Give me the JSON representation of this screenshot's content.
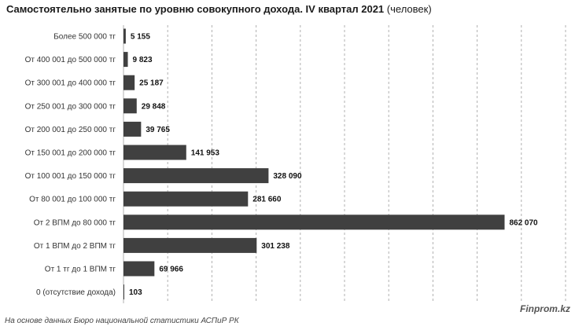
{
  "title": {
    "main": "Самостоятельно занятые по уровню совокупного дохода. IV квартал 2021",
    "unit": "(человек)"
  },
  "colors": {
    "bar": "#404040",
    "grid": "#b0b0b0"
  },
  "chart_data": {
    "type": "bar",
    "orientation": "horizontal",
    "title": "Самостоятельно занятые по уровню совокупного дохода. IV квартал 2021 (человек)",
    "categories": [
      "Более 500 000 тг",
      "От 400 001 до 500 000 тг",
      "От 300 001 до 400 000 тг",
      "От 250 001 до 300 000 тг",
      "От 200 001 до 250 000 тг",
      "От 150 001 до 200 000 тг",
      "От 100 001 до 150 000 тг",
      "От 80 001 до 100 000 тг",
      "От 2 ВПМ до 80 000 тг",
      "От 1 ВПМ до 2 ВПМ тг",
      "От 1 тг до 1 ВПМ тг",
      "0 (отсутствие дохода)"
    ],
    "values": [
      5155,
      9823,
      25187,
      29848,
      39765,
      141953,
      328090,
      281660,
      862070,
      301238,
      69966,
      103
    ],
    "value_labels": [
      "5 155",
      "9 823",
      "25 187",
      "29 848",
      "39 765",
      "141 953",
      "328 090",
      "281 660",
      "862 070",
      "301 238",
      "69 966",
      "103"
    ],
    "xlim": [
      0,
      1000000
    ],
    "grid": "vertical dashed",
    "legend": "none"
  },
  "brand": "Finprom.kz",
  "source": "На основе данных Бюро национальной статистики АСПиР РК"
}
